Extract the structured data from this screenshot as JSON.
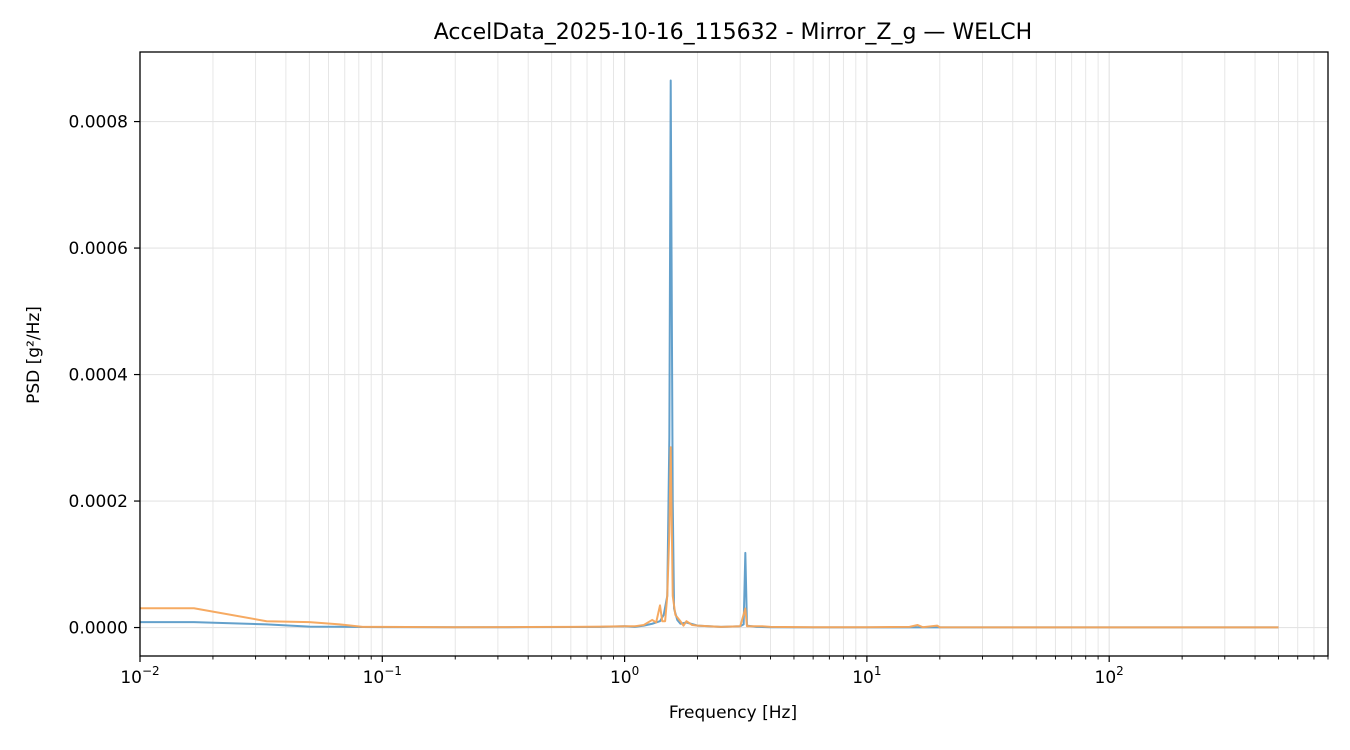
{
  "chart_data": {
    "type": "line",
    "title": "AccelData_2025-10-16_115632 - Mirror_Z_g — WELCH",
    "xlabel": "Frequency [Hz]",
    "ylabel": "PSD [g²/Hz]",
    "x_scale": "log",
    "xlim": [
      0.01,
      800
    ],
    "ylim": [
      -4.5e-05,
      0.00091
    ],
    "grid": true,
    "legend": "none",
    "x_ticks": [
      {
        "value": 0.01,
        "base": "10",
        "exp": "−2"
      },
      {
        "value": 0.1,
        "base": "10",
        "exp": "−1"
      },
      {
        "value": 1,
        "base": "10",
        "exp": "0"
      },
      {
        "value": 10,
        "base": "10",
        "exp": "1"
      },
      {
        "value": 100,
        "base": "10",
        "exp": "2"
      }
    ],
    "y_ticks": [
      {
        "value": 0.0,
        "label": "0.0000"
      },
      {
        "value": 0.0002,
        "label": "0.0002"
      },
      {
        "value": 0.0004,
        "label": "0.0004"
      },
      {
        "value": 0.0006,
        "label": "0.0006"
      },
      {
        "value": 0.0008,
        "label": "0.0008"
      }
    ],
    "series": [
      {
        "color": "#5b9bc8",
        "points": [
          [
            0.01,
            8.5e-06
          ],
          [
            0.0167,
            8.5e-06
          ],
          [
            0.0333,
            5e-06
          ],
          [
            0.05,
            1.5e-06
          ],
          [
            0.0667,
            1.2e-06
          ],
          [
            0.083,
            8e-07
          ],
          [
            0.1,
            7e-07
          ],
          [
            0.2,
            4e-07
          ],
          [
            0.4,
            6e-07
          ],
          [
            0.6,
            8e-07
          ],
          [
            0.8,
            1e-06
          ],
          [
            1.0,
            2e-06
          ],
          [
            1.1,
            1e-06
          ],
          [
            1.2,
            3e-06
          ],
          [
            1.3,
            6e-06
          ],
          [
            1.4,
            1e-05
          ],
          [
            1.45,
            2e-05
          ],
          [
            1.5,
            5e-05
          ],
          [
            1.53,
            0.0003
          ],
          [
            1.55,
            0.000865
          ],
          [
            1.58,
            0.0002
          ],
          [
            1.6,
            3e-05
          ],
          [
            1.65,
            1.2e-05
          ],
          [
            1.7,
            6e-06
          ],
          [
            1.8,
            8e-06
          ],
          [
            2.0,
            3e-06
          ],
          [
            2.5,
            1e-06
          ],
          [
            3.0,
            2e-06
          ],
          [
            3.1,
            5e-06
          ],
          [
            3.15,
            0.000118
          ],
          [
            3.2,
            3e-06
          ],
          [
            3.5,
            1e-06
          ],
          [
            4.0,
            5e-07
          ],
          [
            6.0,
            3e-07
          ],
          [
            10.0,
            3e-07
          ],
          [
            15.0,
            3e-07
          ],
          [
            16.0,
            5e-07
          ],
          [
            20.0,
            3e-07
          ],
          [
            50.0,
            2e-07
          ],
          [
            100.0,
            2e-07
          ],
          [
            500.0,
            2e-07
          ]
        ]
      },
      {
        "color": "#f5a55a",
        "points": [
          [
            0.01,
            3.05e-05
          ],
          [
            0.0167,
            3.05e-05
          ],
          [
            0.0333,
            1e-05
          ],
          [
            0.05,
            8.5e-06
          ],
          [
            0.0667,
            5e-06
          ],
          [
            0.083,
            1e-06
          ],
          [
            0.1,
            1e-06
          ],
          [
            0.2,
            5e-07
          ],
          [
            0.4,
            8e-07
          ],
          [
            0.6,
            1e-06
          ],
          [
            0.8,
            1.5e-06
          ],
          [
            1.0,
            2e-06
          ],
          [
            1.1,
            2e-06
          ],
          [
            1.2,
            4e-06
          ],
          [
            1.3,
            1.2e-05
          ],
          [
            1.35,
            8e-06
          ],
          [
            1.4,
            3.5e-05
          ],
          [
            1.43,
            1e-05
          ],
          [
            1.47,
            1e-05
          ],
          [
            1.5,
            5e-05
          ],
          [
            1.53,
            0.00015
          ],
          [
            1.55,
            0.000285
          ],
          [
            1.58,
            5e-05
          ],
          [
            1.62,
            2e-05
          ],
          [
            1.7,
            1e-05
          ],
          [
            1.75,
            3e-06
          ],
          [
            1.8,
            1e-05
          ],
          [
            1.9,
            4e-06
          ],
          [
            2.0,
            3e-06
          ],
          [
            2.5,
            1e-06
          ],
          [
            3.0,
            2e-06
          ],
          [
            3.15,
            3e-05
          ],
          [
            3.2,
            2e-06
          ],
          [
            3.7,
            2e-06
          ],
          [
            4.0,
            1e-06
          ],
          [
            6.0,
            5e-07
          ],
          [
            10.0,
            5e-07
          ],
          [
            15.0,
            1e-06
          ],
          [
            16.2,
            4e-06
          ],
          [
            17.0,
            5e-07
          ],
          [
            19.5,
            3e-06
          ],
          [
            20.0,
            5e-07
          ],
          [
            50.0,
            3e-07
          ],
          [
            100.0,
            3e-07
          ],
          [
            500.0,
            3e-07
          ]
        ]
      }
    ]
  }
}
